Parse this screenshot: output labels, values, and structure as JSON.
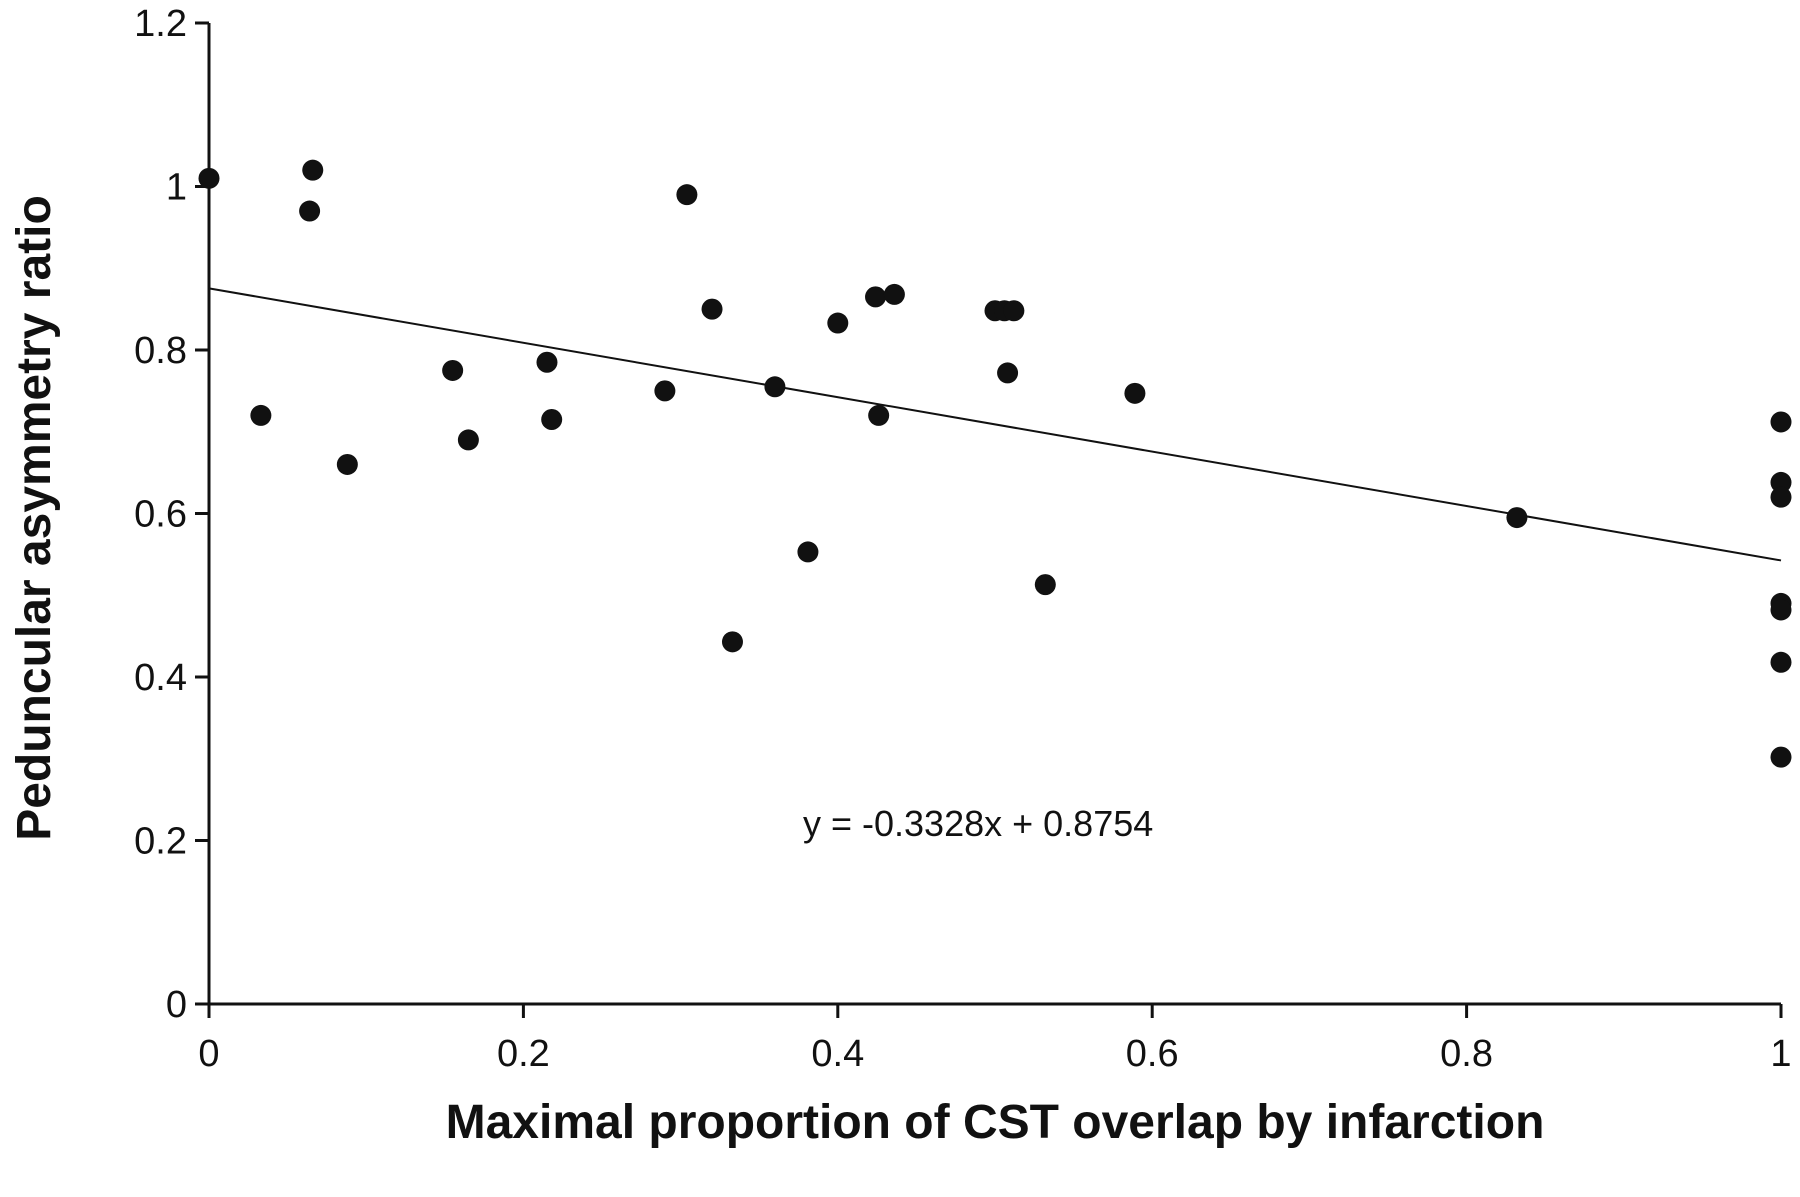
{
  "chart_data": {
    "type": "scatter",
    "title": "",
    "xlabel": "Maximal proportion of CST overlap by infarction",
    "ylabel": "Peduncular asymmetry ratio",
    "xlim": [
      0,
      1
    ],
    "ylim": [
      0,
      1.2
    ],
    "x_ticks": [
      "0",
      "0.2",
      "0.4",
      "0.6",
      "0.8",
      "1"
    ],
    "y_ticks": [
      "0",
      "0.2",
      "0.4",
      "0.6",
      "0.8",
      "1",
      "1.2"
    ],
    "grid": false,
    "legend": "none",
    "marker_color": "#111111",
    "trendline": {
      "slope": -0.3328,
      "intercept": 0.8754,
      "equation_label": "y = -0.3328x + 0.8754"
    },
    "points": [
      {
        "x": 0.0,
        "y": 1.01
      },
      {
        "x": 0.033,
        "y": 0.72
      },
      {
        "x": 0.064,
        "y": 0.97
      },
      {
        "x": 0.066,
        "y": 1.02
      },
      {
        "x": 0.088,
        "y": 0.66
      },
      {
        "x": 0.155,
        "y": 0.775
      },
      {
        "x": 0.165,
        "y": 0.69
      },
      {
        "x": 0.215,
        "y": 0.785
      },
      {
        "x": 0.218,
        "y": 0.715
      },
      {
        "x": 0.29,
        "y": 0.75
      },
      {
        "x": 0.304,
        "y": 0.99
      },
      {
        "x": 0.32,
        "y": 0.85
      },
      {
        "x": 0.333,
        "y": 0.443
      },
      {
        "x": 0.36,
        "y": 0.755
      },
      {
        "x": 0.381,
        "y": 0.553
      },
      {
        "x": 0.4,
        "y": 0.833
      },
      {
        "x": 0.424,
        "y": 0.865
      },
      {
        "x": 0.426,
        "y": 0.72
      },
      {
        "x": 0.436,
        "y": 0.868
      },
      {
        "x": 0.5,
        "y": 0.848
      },
      {
        "x": 0.506,
        "y": 0.848
      },
      {
        "x": 0.508,
        "y": 0.772
      },
      {
        "x": 0.512,
        "y": 0.848
      },
      {
        "x": 0.532,
        "y": 0.513
      },
      {
        "x": 0.589,
        "y": 0.747
      },
      {
        "x": 0.832,
        "y": 0.595
      },
      {
        "x": 1.0,
        "y": 0.712
      },
      {
        "x": 1.0,
        "y": 0.638
      },
      {
        "x": 1.0,
        "y": 0.62
      },
      {
        "x": 1.0,
        "y": 0.49
      },
      {
        "x": 1.0,
        "y": 0.482
      },
      {
        "x": 1.0,
        "y": 0.418
      },
      {
        "x": 1.0,
        "y": 0.302
      }
    ]
  }
}
